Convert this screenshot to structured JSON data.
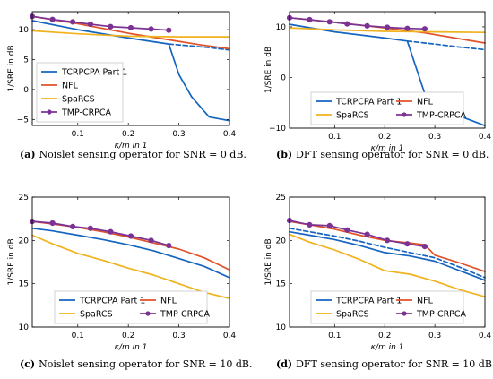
{
  "chart_data": [
    {
      "type": "line",
      "caption_tag": "(a)",
      "caption": "Noislet sensing operator for SNR = 0 dB.",
      "xlabel": "κ/m in 1",
      "ylabel": "1/SRE in dB",
      "xlim": [
        0.01,
        0.4
      ],
      "ylim": [
        -6,
        13
      ],
      "xticks": [
        0.1,
        0.2,
        0.3,
        0.4
      ],
      "xtick_labels": [
        "0.1",
        "0.2",
        "0.3",
        "0.4"
      ],
      "yticks": [
        -5,
        0,
        5,
        10
      ],
      "ytick_labels": [
        "−5",
        "0",
        "5",
        "10"
      ],
      "legend": {
        "position": "bottom-left",
        "columns": 1
      },
      "series": [
        {
          "name": "TCRPCPA Part 1",
          "color": "#1565c0",
          "style": "solid",
          "marker": "none",
          "x": [
            0.01,
            0.1,
            0.2,
            0.28,
            0.3,
            0.325,
            0.36,
            0.4
          ],
          "y": [
            11.5,
            10.0,
            8.6,
            7.6,
            2.5,
            -1.2,
            -4.6,
            -5.2
          ]
        },
        {
          "name": "",
          "color": "#1565c0",
          "style": "dashed",
          "marker": "none",
          "x": [
            0.28,
            0.32,
            0.36,
            0.4
          ],
          "y": [
            7.6,
            7.3,
            7.0,
            6.6
          ]
        },
        {
          "name": "NFL",
          "color": "#e0522a",
          "style": "solid",
          "marker": "none",
          "x": [
            0.01,
            0.1,
            0.2,
            0.28,
            0.34,
            0.4
          ],
          "y": [
            12.2,
            11.0,
            9.4,
            8.3,
            7.5,
            6.8
          ]
        },
        {
          "name": "SpaRCS",
          "color": "#f0b21e",
          "style": "solid",
          "marker": "none",
          "x": [
            0.01,
            0.1,
            0.2,
            0.3,
            0.4
          ],
          "y": [
            9.8,
            9.3,
            8.9,
            8.8,
            8.8
          ]
        },
        {
          "name": "TMP-CRPCA",
          "color": "#7b3294",
          "style": "solid",
          "marker": "circle",
          "x": [
            0.01,
            0.05,
            0.09,
            0.125,
            0.165,
            0.205,
            0.245,
            0.28
          ],
          "y": [
            12.2,
            11.7,
            11.3,
            10.9,
            10.5,
            10.3,
            10.1,
            9.9
          ]
        }
      ]
    },
    {
      "type": "line",
      "caption_tag": "(b)",
      "caption": "DFT sensing operator for SNR = 0 dB.",
      "xlabel": "κ/m in 1",
      "ylabel": "1/SRE in dB",
      "xlim": [
        0.01,
        0.4
      ],
      "ylim": [
        -10,
        13
      ],
      "xticks": [
        0.1,
        0.2,
        0.3,
        0.4
      ],
      "xtick_labels": [
        "0.1",
        "0.2",
        "0.3",
        "0.4"
      ],
      "yticks": [
        -10,
        0,
        10
      ],
      "ytick_labels": [
        "−10",
        "0",
        "10"
      ],
      "legend": {
        "position": "bottom-center",
        "columns": 2
      },
      "series": [
        {
          "name": "TCRPCPA Part 1",
          "color": "#1565c0",
          "style": "solid",
          "marker": "none",
          "x": [
            0.01,
            0.1,
            0.2,
            0.245,
            0.28,
            0.32,
            0.36,
            0.4
          ],
          "y": [
            10.5,
            9.0,
            7.8,
            7.2,
            -3.2,
            -5.5,
            -8.0,
            -9.5
          ]
        },
        {
          "name": "",
          "color": "#1565c0",
          "style": "dashed",
          "marker": "none",
          "x": [
            0.245,
            0.3,
            0.35,
            0.4
          ],
          "y": [
            7.2,
            6.6,
            6.0,
            5.5
          ]
        },
        {
          "name": "NFL",
          "color": "#e0522a",
          "style": "solid",
          "marker": "none",
          "x": [
            0.01,
            0.1,
            0.2,
            0.28,
            0.34,
            0.4
          ],
          "y": [
            11.8,
            10.9,
            9.8,
            8.8,
            7.8,
            6.8
          ]
        },
        {
          "name": "SpaRCS",
          "color": "#f0b21e",
          "style": "solid",
          "marker": "none",
          "x": [
            0.01,
            0.1,
            0.2,
            0.3,
            0.4
          ],
          "y": [
            9.8,
            9.4,
            9.1,
            9.0,
            8.9
          ]
        },
        {
          "name": "TMP-CRPCA",
          "color": "#7b3294",
          "style": "solid",
          "marker": "circle",
          "x": [
            0.01,
            0.05,
            0.09,
            0.125,
            0.165,
            0.205,
            0.245,
            0.28
          ],
          "y": [
            11.8,
            11.4,
            11.0,
            10.6,
            10.2,
            9.9,
            9.7,
            9.6
          ]
        }
      ]
    },
    {
      "type": "line",
      "caption_tag": "(c)",
      "caption": "Noislet sensing operator for SNR = 10 dB.",
      "xlabel": "κ/m in 1",
      "ylabel": "1/SRE in dB",
      "xlim": [
        0.01,
        0.4
      ],
      "ylim": [
        10,
        25
      ],
      "xticks": [
        0.1,
        0.2,
        0.3,
        0.4
      ],
      "xtick_labels": [
        "0.1",
        "0.2",
        "0.3",
        "0.4"
      ],
      "yticks": [
        10,
        15,
        20,
        25
      ],
      "ytick_labels": [
        "10",
        "15",
        "20",
        "25"
      ],
      "legend": {
        "position": "bottom-center",
        "columns": 2
      },
      "series": [
        {
          "name": "TCRPCPA Part 1",
          "color": "#1565c0",
          "style": "solid",
          "marker": "none",
          "x": [
            0.01,
            0.05,
            0.1,
            0.15,
            0.2,
            0.25,
            0.3,
            0.35,
            0.4
          ],
          "y": [
            21.4,
            21.1,
            20.6,
            20.1,
            19.5,
            18.8,
            17.9,
            17.0,
            15.7
          ]
        },
        {
          "name": "NFL",
          "color": "#e0522a",
          "style": "solid",
          "marker": "none",
          "x": [
            0.01,
            0.05,
            0.1,
            0.15,
            0.2,
            0.25,
            0.3,
            0.35,
            0.4
          ],
          "y": [
            22.2,
            21.9,
            21.5,
            21.0,
            20.4,
            19.7,
            19.0,
            18.0,
            16.6
          ]
        },
        {
          "name": "SpaRCS",
          "color": "#f0b21e",
          "style": "solid",
          "marker": "none",
          "x": [
            0.01,
            0.05,
            0.1,
            0.15,
            0.2,
            0.25,
            0.3,
            0.35,
            0.4
          ],
          "y": [
            20.6,
            19.6,
            18.5,
            17.7,
            16.8,
            16.0,
            15.0,
            14.0,
            13.3
          ]
        },
        {
          "name": "TMP-CRPCA",
          "color": "#7b3294",
          "style": "solid",
          "marker": "circle",
          "x": [
            0.01,
            0.05,
            0.09,
            0.125,
            0.165,
            0.205,
            0.245,
            0.28
          ],
          "y": [
            22.2,
            22.0,
            21.6,
            21.4,
            21.0,
            20.5,
            20.0,
            19.4
          ]
        }
      ]
    },
    {
      "type": "line",
      "caption_tag": "(d)",
      "caption": "DFT sensing operator for SNR = 10 dB.",
      "xlabel": "κ/m in 1",
      "ylabel": "1/SRE in dB",
      "xlim": [
        0.01,
        0.4
      ],
      "ylim": [
        10,
        25
      ],
      "xticks": [
        0.1,
        0.2,
        0.3,
        0.4
      ],
      "xtick_labels": [
        "0.1",
        "0.2",
        "0.3",
        "0.4"
      ],
      "yticks": [
        10,
        15,
        20,
        25
      ],
      "ytick_labels": [
        "10",
        "15",
        "20",
        "25"
      ],
      "legend": {
        "position": "bottom-center",
        "columns": 2
      },
      "series": [
        {
          "name": "TCRPCPA Part 1",
          "color": "#1565c0",
          "style": "solid",
          "marker": "none",
          "x": [
            0.01,
            0.05,
            0.1,
            0.15,
            0.2,
            0.25,
            0.3,
            0.35,
            0.4
          ],
          "y": [
            21.0,
            20.6,
            20.1,
            19.4,
            18.6,
            18.2,
            17.6,
            16.5,
            15.4
          ]
        },
        {
          "name": "",
          "color": "#1565c0",
          "style": "dashed",
          "marker": "none",
          "x": [
            0.01,
            0.05,
            0.1,
            0.15,
            0.2,
            0.25,
            0.3,
            0.35,
            0.4
          ],
          "y": [
            21.4,
            21.0,
            20.5,
            19.9,
            19.2,
            18.6,
            18.0,
            16.9,
            15.7
          ]
        },
        {
          "name": "NFL",
          "color": "#e0522a",
          "style": "solid",
          "marker": "none",
          "x": [
            0.01,
            0.05,
            0.1,
            0.15,
            0.2,
            0.25,
            0.28,
            0.3,
            0.35,
            0.4
          ],
          "y": [
            22.2,
            21.8,
            21.3,
            20.6,
            20.0,
            19.7,
            19.5,
            18.3,
            17.4,
            16.4
          ]
        },
        {
          "name": "SpaRCS",
          "color": "#f0b21e",
          "style": "solid",
          "marker": "none",
          "x": [
            0.01,
            0.05,
            0.1,
            0.15,
            0.2,
            0.25,
            0.3,
            0.35,
            0.4
          ],
          "y": [
            20.7,
            19.8,
            18.9,
            17.8,
            16.5,
            16.1,
            15.3,
            14.3,
            13.5
          ]
        },
        {
          "name": "TMP-CRPCA",
          "color": "#7b3294",
          "style": "solid",
          "marker": "circle",
          "x": [
            0.01,
            0.05,
            0.09,
            0.125,
            0.165,
            0.205,
            0.245,
            0.28
          ],
          "y": [
            22.3,
            21.8,
            21.7,
            21.2,
            20.7,
            20.0,
            19.6,
            19.3
          ]
        }
      ]
    }
  ]
}
